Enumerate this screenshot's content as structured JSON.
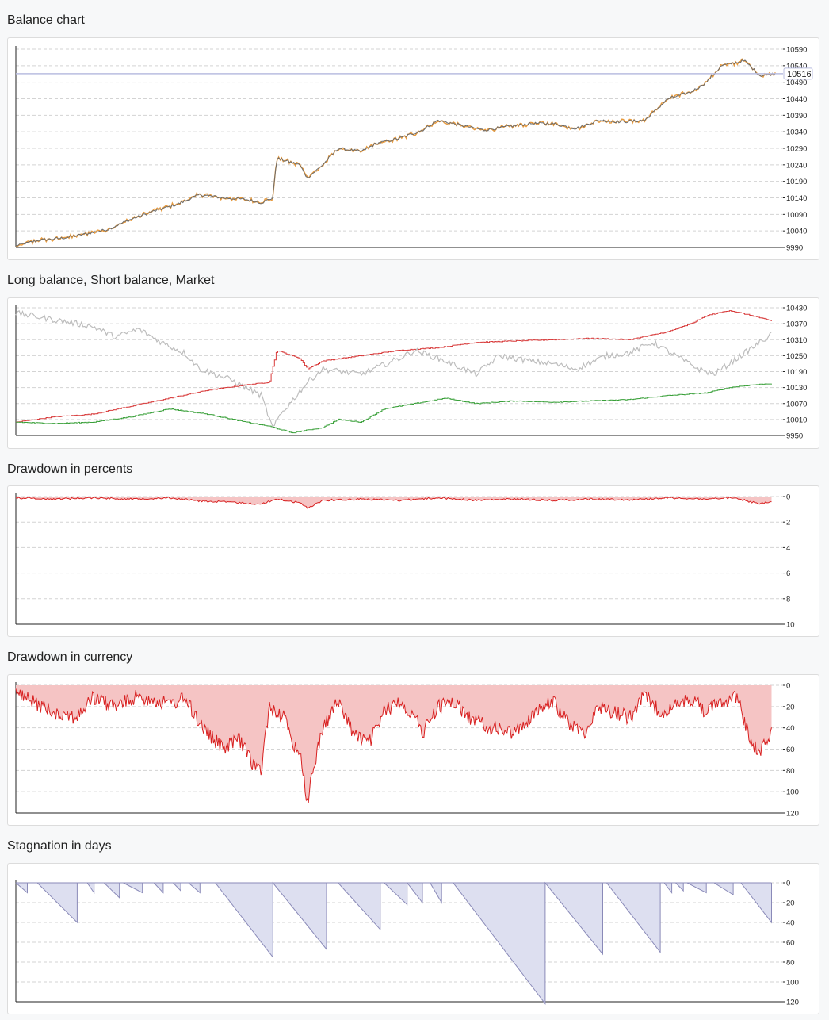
{
  "sections": [
    {
      "title": "Balance chart"
    },
    {
      "title": "Long balance, Short balance, Market"
    },
    {
      "title": "Drawdown in percents"
    },
    {
      "title": "Drawdown in currency"
    },
    {
      "title": "Stagnation in days"
    }
  ],
  "colors": {
    "balance_line": "#6b6b6b",
    "balance_equity": "#e89a3c",
    "current_line": "#b9bde0",
    "long": "#d83a3a",
    "short": "#3aa03a",
    "market": "#bdbdbd",
    "drawdown_line": "#d82020",
    "drawdown_fill": "#f5c4c4",
    "stagnation_line": "#8a8ab8",
    "stagnation_fill": "#dddff0"
  },
  "chart_data": [
    {
      "type": "line",
      "name": "balance",
      "yticks": [
        9990,
        10040,
        10090,
        10140,
        10190,
        10240,
        10290,
        10340,
        10390,
        10440,
        10490,
        10540,
        10590
      ],
      "ylim": [
        9990,
        10590
      ],
      "current_value": "10516",
      "keypoints": [
        [
          0,
          9995
        ],
        [
          0.03,
          10012
        ],
        [
          0.06,
          10018
        ],
        [
          0.09,
          10030
        ],
        [
          0.12,
          10045
        ],
        [
          0.15,
          10075
        ],
        [
          0.18,
          10100
        ],
        [
          0.21,
          10120
        ],
        [
          0.24,
          10150
        ],
        [
          0.27,
          10140
        ],
        [
          0.3,
          10135
        ],
        [
          0.32,
          10125
        ],
        [
          0.335,
          10140
        ],
        [
          0.34,
          10260
        ],
        [
          0.37,
          10240
        ],
        [
          0.38,
          10200
        ],
        [
          0.4,
          10240
        ],
        [
          0.42,
          10290
        ],
        [
          0.45,
          10280
        ],
        [
          0.47,
          10305
        ],
        [
          0.5,
          10320
        ],
        [
          0.53,
          10345
        ],
        [
          0.55,
          10375
        ],
        [
          0.58,
          10360
        ],
        [
          0.61,
          10345
        ],
        [
          0.64,
          10355
        ],
        [
          0.67,
          10365
        ],
        [
          0.7,
          10365
        ],
        [
          0.73,
          10350
        ],
        [
          0.76,
          10375
        ],
        [
          0.79,
          10370
        ],
        [
          0.82,
          10375
        ],
        [
          0.85,
          10440
        ],
        [
          0.88,
          10460
        ],
        [
          0.9,
          10490
        ],
        [
          0.92,
          10540
        ],
        [
          0.95,
          10555
        ],
        [
          0.97,
          10510
        ],
        [
          0.99,
          10516
        ]
      ]
    },
    {
      "type": "line",
      "name": "long-short-market",
      "yticks": [
        9950,
        10010,
        10070,
        10130,
        10190,
        10250,
        10310,
        10370,
        10430
      ],
      "ylim": [
        9950,
        10430
      ],
      "series": [
        {
          "key": "long",
          "keypoints": [
            [
              0,
              10000
            ],
            [
              0.05,
              10020
            ],
            [
              0.1,
              10030
            ],
            [
              0.15,
              10060
            ],
            [
              0.2,
              10090
            ],
            [
              0.25,
              10120
            ],
            [
              0.3,
              10140
            ],
            [
              0.33,
              10150
            ],
            [
              0.34,
              10270
            ],
            [
              0.37,
              10240
            ],
            [
              0.38,
              10200
            ],
            [
              0.4,
              10230
            ],
            [
              0.45,
              10250
            ],
            [
              0.5,
              10270
            ],
            [
              0.55,
              10280
            ],
            [
              0.6,
              10300
            ],
            [
              0.65,
              10305
            ],
            [
              0.7,
              10310
            ],
            [
              0.75,
              10315
            ],
            [
              0.8,
              10310
            ],
            [
              0.85,
              10340
            ],
            [
              0.88,
              10370
            ],
            [
              0.9,
              10400
            ],
            [
              0.93,
              10420
            ],
            [
              0.96,
              10400
            ],
            [
              0.985,
              10380
            ]
          ]
        },
        {
          "key": "short",
          "keypoints": [
            [
              0,
              10000
            ],
            [
              0.05,
              9995
            ],
            [
              0.1,
              10000
            ],
            [
              0.15,
              10020
            ],
            [
              0.2,
              10050
            ],
            [
              0.25,
              10030
            ],
            [
              0.3,
              10000
            ],
            [
              0.33,
              9985
            ],
            [
              0.36,
              9960
            ],
            [
              0.4,
              9980
            ],
            [
              0.42,
              10010
            ],
            [
              0.45,
              10000
            ],
            [
              0.48,
              10050
            ],
            [
              0.52,
              10070
            ],
            [
              0.56,
              10090
            ],
            [
              0.6,
              10070
            ],
            [
              0.65,
              10080
            ],
            [
              0.7,
              10075
            ],
            [
              0.75,
              10080
            ],
            [
              0.8,
              10085
            ],
            [
              0.85,
              10100
            ],
            [
              0.9,
              10110
            ],
            [
              0.93,
              10130
            ],
            [
              0.96,
              10140
            ],
            [
              0.985,
              10145
            ]
          ]
        },
        {
          "key": "market",
          "keypoints": [
            [
              0,
              10410
            ],
            [
              0.05,
              10385
            ],
            [
              0.1,
              10360
            ],
            [
              0.13,
              10320
            ],
            [
              0.16,
              10350
            ],
            [
              0.19,
              10300
            ],
            [
              0.22,
              10260
            ],
            [
              0.24,
              10200
            ],
            [
              0.28,
              10160
            ],
            [
              0.32,
              10100
            ],
            [
              0.335,
              9975
            ],
            [
              0.345,
              10030
            ],
            [
              0.36,
              10080
            ],
            [
              0.38,
              10150
            ],
            [
              0.4,
              10200
            ],
            [
              0.45,
              10180
            ],
            [
              0.5,
              10240
            ],
            [
              0.52,
              10270
            ],
            [
              0.56,
              10230
            ],
            [
              0.6,
              10180
            ],
            [
              0.63,
              10250
            ],
            [
              0.67,
              10230
            ],
            [
              0.7,
              10220
            ],
            [
              0.73,
              10200
            ],
            [
              0.77,
              10250
            ],
            [
              0.8,
              10260
            ],
            [
              0.83,
              10300
            ],
            [
              0.86,
              10250
            ],
            [
              0.89,
              10200
            ],
            [
              0.91,
              10180
            ],
            [
              0.94,
              10240
            ],
            [
              0.96,
              10280
            ],
            [
              0.985,
              10330
            ]
          ]
        }
      ]
    },
    {
      "type": "area",
      "name": "drawdown-percent",
      "yticks": [
        0,
        2,
        4,
        6,
        8,
        10
      ],
      "ylim": [
        0,
        10
      ],
      "inverted": true,
      "keypoints": [
        [
          0,
          0.1
        ],
        [
          0.05,
          0.2
        ],
        [
          0.1,
          0.1
        ],
        [
          0.15,
          0.2
        ],
        [
          0.2,
          0.1
        ],
        [
          0.24,
          0.35
        ],
        [
          0.28,
          0.45
        ],
        [
          0.32,
          0.6
        ],
        [
          0.34,
          0.2
        ],
        [
          0.37,
          0.5
        ],
        [
          0.38,
          0.9
        ],
        [
          0.4,
          0.3
        ],
        [
          0.45,
          0.2
        ],
        [
          0.5,
          0.3
        ],
        [
          0.55,
          0.1
        ],
        [
          0.6,
          0.3
        ],
        [
          0.65,
          0.2
        ],
        [
          0.7,
          0.3
        ],
        [
          0.75,
          0.2
        ],
        [
          0.8,
          0.25
        ],
        [
          0.85,
          0.1
        ],
        [
          0.9,
          0.2
        ],
        [
          0.93,
          0.1
        ],
        [
          0.95,
          0.3
        ],
        [
          0.97,
          0.6
        ],
        [
          0.985,
          0.4
        ]
      ]
    },
    {
      "type": "area",
      "name": "drawdown-currency",
      "yticks": [
        0,
        20,
        40,
        60,
        80,
        100,
        120
      ],
      "ylim": [
        0,
        120
      ],
      "inverted": true,
      "keypoints": [
        [
          0,
          8
        ],
        [
          0.02,
          15
        ],
        [
          0.05,
          25
        ],
        [
          0.08,
          30
        ],
        [
          0.1,
          12
        ],
        [
          0.13,
          20
        ],
        [
          0.16,
          10
        ],
        [
          0.2,
          18
        ],
        [
          0.22,
          12
        ],
        [
          0.235,
          30
        ],
        [
          0.25,
          45
        ],
        [
          0.27,
          60
        ],
        [
          0.29,
          50
        ],
        [
          0.31,
          75
        ],
        [
          0.32,
          80
        ],
        [
          0.33,
          20
        ],
        [
          0.35,
          30
        ],
        [
          0.36,
          55
        ],
        [
          0.37,
          60
        ],
        [
          0.38,
          110
        ],
        [
          0.39,
          70
        ],
        [
          0.4,
          40
        ],
        [
          0.42,
          15
        ],
        [
          0.44,
          45
        ],
        [
          0.46,
          55
        ],
        [
          0.48,
          25
        ],
        [
          0.5,
          15
        ],
        [
          0.52,
          30
        ],
        [
          0.53,
          45
        ],
        [
          0.55,
          20
        ],
        [
          0.57,
          15
        ],
        [
          0.59,
          30
        ],
        [
          0.62,
          40
        ],
        [
          0.65,
          45
        ],
        [
          0.67,
          30
        ],
        [
          0.7,
          15
        ],
        [
          0.72,
          35
        ],
        [
          0.74,
          45
        ],
        [
          0.76,
          20
        ],
        [
          0.78,
          25
        ],
        [
          0.8,
          30
        ],
        [
          0.82,
          10
        ],
        [
          0.84,
          25
        ],
        [
          0.86,
          20
        ],
        [
          0.88,
          12
        ],
        [
          0.9,
          25
        ],
        [
          0.92,
          15
        ],
        [
          0.94,
          10
        ],
        [
          0.95,
          35
        ],
        [
          0.96,
          55
        ],
        [
          0.97,
          65
        ],
        [
          0.98,
          50
        ],
        [
          0.985,
          45
        ]
      ]
    },
    {
      "type": "area",
      "name": "stagnation-days",
      "yticks": [
        0,
        20,
        40,
        60,
        80,
        100,
        120
      ],
      "ylim": [
        0,
        120
      ],
      "inverted": true,
      "spikes": [
        [
          0.0,
          0.015,
          10
        ],
        [
          0.028,
          0.08,
          40
        ],
        [
          0.093,
          0.102,
          10
        ],
        [
          0.115,
          0.135,
          15
        ],
        [
          0.14,
          0.165,
          10
        ],
        [
          0.18,
          0.192,
          10
        ],
        [
          0.205,
          0.215,
          8
        ],
        [
          0.225,
          0.24,
          10
        ],
        [
          0.26,
          0.335,
          75
        ],
        [
          0.335,
          0.405,
          67
        ],
        [
          0.42,
          0.475,
          47
        ],
        [
          0.48,
          0.51,
          22
        ],
        [
          0.51,
          0.53,
          20
        ],
        [
          0.54,
          0.555,
          20
        ],
        [
          0.57,
          0.69,
          122
        ],
        [
          0.69,
          0.765,
          72
        ],
        [
          0.77,
          0.84,
          70
        ],
        [
          0.845,
          0.855,
          10
        ],
        [
          0.86,
          0.87,
          8
        ],
        [
          0.875,
          0.9,
          10
        ],
        [
          0.91,
          0.935,
          12
        ],
        [
          0.945,
          0.985,
          40
        ]
      ]
    }
  ]
}
